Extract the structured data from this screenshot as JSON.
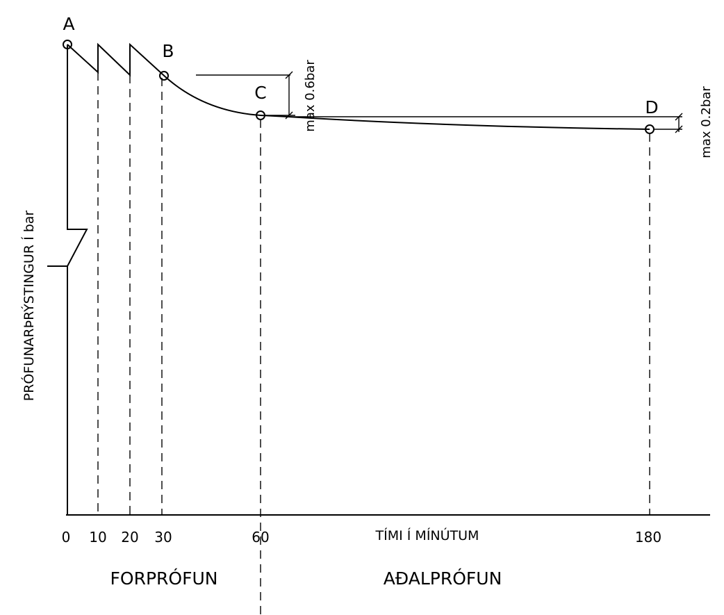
{
  "points": [
    {
      "id": "A",
      "label": "A",
      "time_min": 0
    },
    {
      "id": "B",
      "label": "B",
      "time_min": 30
    },
    {
      "id": "C",
      "label": "C",
      "time_min": 60
    },
    {
      "id": "D",
      "label": "D",
      "time_min": 180
    }
  ],
  "x_axis": {
    "title": "TÍMI Í MÍNÚTUM",
    "ticks": [
      "0",
      "10",
      "20",
      "30",
      "60",
      "180"
    ]
  },
  "y_axis": {
    "title": "PRÓFUNARÞRÝSTINGUR Í bar"
  },
  "tolerances": {
    "pretest_drop": "max  0.6bar",
    "main_drop": "max  0.2bar"
  },
  "phases": {
    "pre_test": "FORPRÓFUN",
    "main_test": "AÐALPRÓFUN"
  }
}
